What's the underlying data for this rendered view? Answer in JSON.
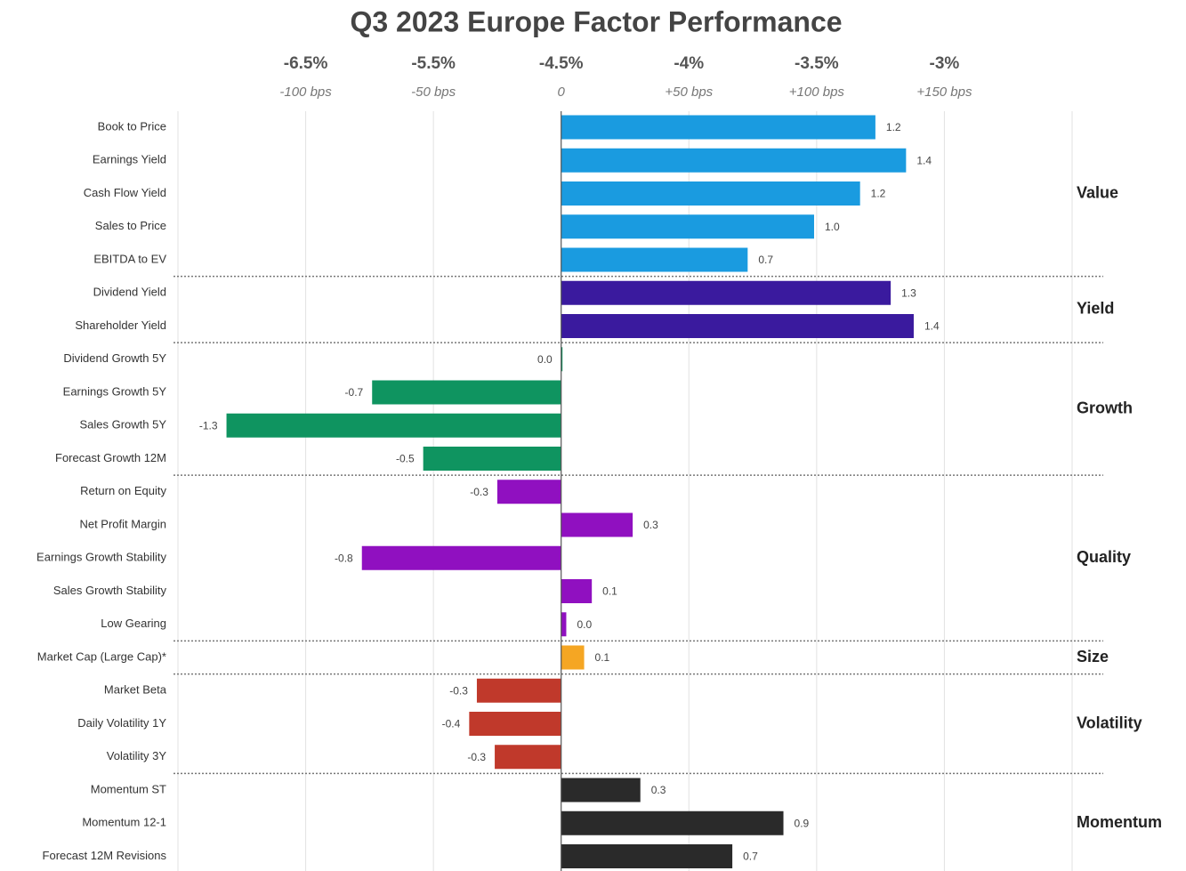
{
  "chart_data": {
    "type": "bar",
    "title": "Q3 2023 Europe Factor Performance",
    "xlim": [
      -1.5,
      2.0
    ],
    "xticks": [
      {
        "value": -1,
        "label": "-6.5%"
      },
      {
        "value": -0.5,
        "label": "-5.5%"
      },
      {
        "value": 0,
        "label": "-4.5%"
      },
      {
        "value": 0.5,
        "label": "-4%"
      },
      {
        "value": 1,
        "label": "-3.5%"
      },
      {
        "value": 1.5,
        "label": "-3%"
      }
    ],
    "xticks2": [
      {
        "value": -1,
        "label": "-100 bps"
      },
      {
        "value": -0.5,
        "label": "-50 bps"
      },
      0,
      {
        "value": 0.5,
        "label": "+50 bps"
      },
      {
        "value": 1,
        "label": "+100 bps"
      },
      {
        "value": 1.5,
        "label": "+150 bps"
      }
    ],
    "grid": true,
    "groups": [
      {
        "name": "Value",
        "color": "#1a9be0",
        "categories": [
          "Book to Price",
          "Earnings Yield",
          "Cash Flow Yield",
          "Sales to Price",
          "EBITDA to EV"
        ],
        "values": [
          1.23,
          1.35,
          1.17,
          0.99,
          0.73
        ],
        "value_labels": [
          "1.2",
          "1.4",
          "1.2",
          "1.0",
          "0.7"
        ]
      },
      {
        "name": "Yield",
        "color": "#3a1a9e",
        "categories": [
          "Dividend Yield",
          "Shareholder Yield"
        ],
        "values": [
          1.29,
          1.38
        ],
        "value_labels": [
          "1.3",
          "1.4"
        ]
      },
      {
        "name": "Growth",
        "color": "#0f9460",
        "categories": [
          "Dividend Growth 5Y",
          "Earnings Growth 5Y",
          "Sales Growth 5Y",
          "Forecast Growth 12M"
        ],
        "values": [
          0,
          -0.74,
          -1.31,
          -0.54
        ],
        "value_labels": [
          "0.0",
          "-0.7",
          "-1.3",
          "-0.5"
        ]
      },
      {
        "name": "Quality",
        "color": "#9010c0",
        "categories": [
          "Return on Equity",
          "Net Profit Margin",
          "Earnings Growth Stability",
          "Sales Growth Stability",
          "Low Gearing"
        ],
        "values": [
          -0.25,
          0.28,
          -0.78,
          0.12,
          0.02
        ],
        "value_labels": [
          "-0.3",
          "0.3",
          "-0.8",
          "0.1",
          "0.0"
        ]
      },
      {
        "name": "Size",
        "color": "#f5a623",
        "categories": [
          "Market Cap (Large Cap)*"
        ],
        "values": [
          0.09
        ],
        "value_labels": [
          "0.1"
        ]
      },
      {
        "name": "Volatility",
        "color": "#c0392b",
        "categories": [
          "Market Beta",
          "Daily Volatility 1Y",
          "Volatility 3Y"
        ],
        "values": [
          -0.33,
          -0.36,
          -0.26
        ],
        "value_labels": [
          "-0.3",
          "-0.4",
          "-0.3"
        ]
      },
      {
        "name": "Momentum",
        "color": "#2a2a2a",
        "categories": [
          "Momentum ST",
          "Momentum 12-1",
          "Forecast 12M Revisions"
        ],
        "values": [
          0.31,
          0.87,
          0.67
        ],
        "value_labels": [
          "0.3",
          "0.9",
          "0.7"
        ]
      }
    ]
  }
}
